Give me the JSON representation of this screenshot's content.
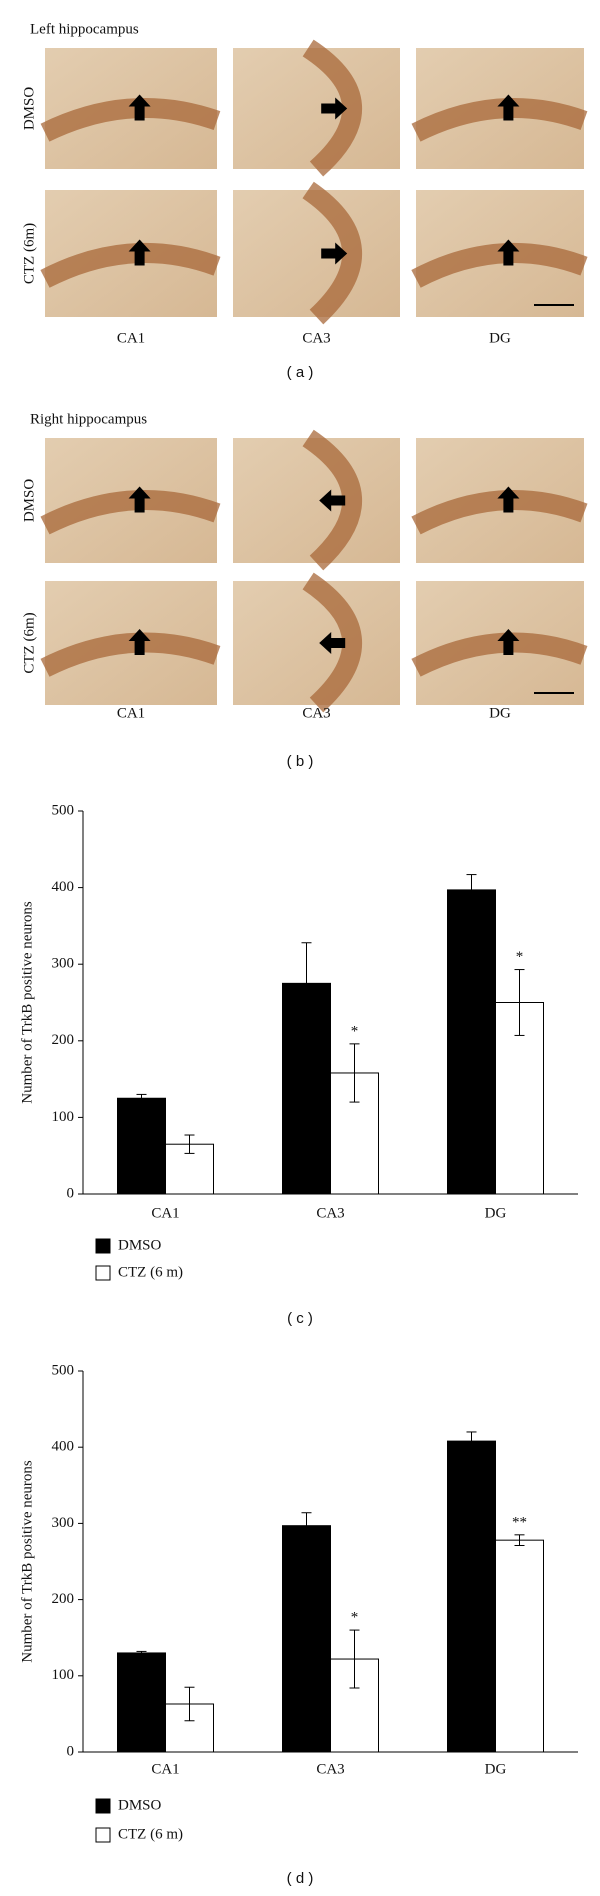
{
  "panels": [
    {
      "label": "( a )",
      "title": "Left hippocampus",
      "rows": [
        "DMSO",
        "CTZ (6m)"
      ],
      "columns": [
        "CA1",
        "CA3",
        "DG"
      ]
    },
    {
      "label": "( b )",
      "title": "Right hippocampus",
      "rows": [
        "DMSO",
        "CTZ (6m)"
      ],
      "columns": [
        "CA1",
        "CA3",
        "DG"
      ]
    }
  ],
  "chart_data": [
    {
      "type": "bar",
      "label": "( c )",
      "y_label": "Number of TrkB positive neurons",
      "categories": [
        "CA1",
        "CA3",
        "DG"
      ],
      "series": [
        {
          "name": "DMSO",
          "color": "#000000",
          "values": [
            125,
            275,
            397
          ],
          "errors": [
            5,
            53,
            20
          ]
        },
        {
          "name": "CTZ (6 m)",
          "color": "#ffffff",
          "values": [
            65,
            158,
            250
          ],
          "errors": [
            12,
            38,
            43
          ]
        }
      ],
      "annotations": [
        {
          "category": "CA3",
          "series": "CTZ (6 m)",
          "text": "*"
        },
        {
          "category": "DG",
          "series": "CTZ (6 m)",
          "text": "*"
        }
      ],
      "ylim": [
        0,
        500
      ],
      "yticks": [
        0,
        100,
        200,
        300,
        400,
        500
      ],
      "grid": false,
      "legend": "bottom-left"
    },
    {
      "type": "bar",
      "label": "( d )",
      "y_label": "Number of TrkB positive neurons",
      "categories": [
        "CA1",
        "CA3",
        "DG"
      ],
      "series": [
        {
          "name": "DMSO",
          "color": "#000000",
          "values": [
            130,
            297,
            408
          ],
          "errors": [
            2,
            17,
            12
          ]
        },
        {
          "name": "CTZ (6 m)",
          "color": "#ffffff",
          "values": [
            63,
            122,
            278
          ],
          "errors": [
            22,
            38,
            7
          ]
        }
      ],
      "annotations": [
        {
          "category": "CA3",
          "series": "CTZ (6 m)",
          "text": "*"
        },
        {
          "category": "DG",
          "series": "CTZ (6 m)",
          "text": "**"
        }
      ],
      "ylim": [
        0,
        500
      ],
      "yticks": [
        0,
        100,
        200,
        300,
        400,
        500
      ],
      "grid": false,
      "legend": "bottom-left"
    }
  ]
}
